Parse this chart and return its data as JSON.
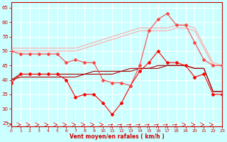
{
  "x": [
    0,
    1,
    2,
    3,
    4,
    5,
    6,
    7,
    8,
    9,
    10,
    11,
    12,
    13,
    14,
    15,
    16,
    17,
    18,
    19,
    20,
    21,
    22,
    23
  ],
  "series": [
    {
      "color": "#ff0000",
      "linewidth": 0.8,
      "marker": "D",
      "markersize": 2.0,
      "y": [
        39,
        42,
        42,
        42,
        42,
        42,
        40,
        34,
        35,
        35,
        32,
        28,
        32,
        38,
        43,
        46,
        50,
        46,
        46,
        45,
        41,
        42,
        35,
        35
      ]
    },
    {
      "color": "#aa0000",
      "linewidth": 0.8,
      "marker": null,
      "markersize": 0,
      "y": [
        40,
        42,
        42,
        42,
        42,
        42,
        42,
        42,
        42,
        43,
        43,
        43,
        43,
        44,
        44,
        44,
        45,
        45,
        45,
        45,
        44,
        44,
        36,
        36
      ]
    },
    {
      "color": "#aa0000",
      "linewidth": 0.8,
      "marker": null,
      "markersize": 0,
      "y": [
        40,
        41,
        41,
        41,
        41,
        41,
        41,
        41,
        42,
        42,
        42,
        42,
        43,
        43,
        44,
        44,
        44,
        45,
        45,
        45,
        44,
        44,
        36,
        36
      ]
    },
    {
      "color": "#ff4444",
      "linewidth": 0.8,
      "marker": "D",
      "markersize": 2.0,
      "y": [
        50,
        49,
        49,
        49,
        49,
        49,
        46,
        47,
        46,
        46,
        40,
        39,
        39,
        38,
        45,
        57,
        61,
        63,
        59,
        59,
        53,
        47,
        45,
        45
      ]
    },
    {
      "color": "#ffaaaa",
      "linewidth": 0.8,
      "marker": null,
      "markersize": 0,
      "y": [
        51,
        51,
        51,
        51,
        51,
        51,
        51,
        51,
        52,
        53,
        54,
        55,
        56,
        57,
        58,
        58,
        58,
        58,
        59,
        59,
        58,
        52,
        46,
        45
      ]
    },
    {
      "color": "#ffaaaa",
      "linewidth": 0.8,
      "marker": null,
      "markersize": 0,
      "y": [
        50,
        50,
        50,
        50,
        50,
        50,
        50,
        50,
        51,
        52,
        53,
        54,
        55,
        56,
        57,
        57,
        57,
        57,
        58,
        58,
        57,
        51,
        45,
        45
      ]
    }
  ],
  "arrow_angles": [
    0,
    0,
    0,
    0,
    0,
    0,
    0,
    0,
    0,
    0,
    0,
    45,
    45,
    45,
    45,
    45,
    45,
    45,
    45,
    0,
    0,
    0,
    0,
    0
  ],
  "xlim": [
    0,
    23
  ],
  "ylim": [
    24,
    67
  ],
  "yticks": [
    25,
    30,
    35,
    40,
    45,
    50,
    55,
    60,
    65
  ],
  "xticks": [
    0,
    1,
    2,
    3,
    4,
    5,
    6,
    7,
    8,
    9,
    10,
    11,
    12,
    13,
    14,
    15,
    16,
    17,
    18,
    19,
    20,
    21,
    22,
    23
  ],
  "xlabel": "Vent moyen/en rafales ( km/h )",
  "bg_color": "#ccffff",
  "grid_color": "#ffffff",
  "axis_color": "#cc0000",
  "label_color": "#cc0000",
  "tick_color": "#cc0000",
  "arrow_color": "#cc0000"
}
